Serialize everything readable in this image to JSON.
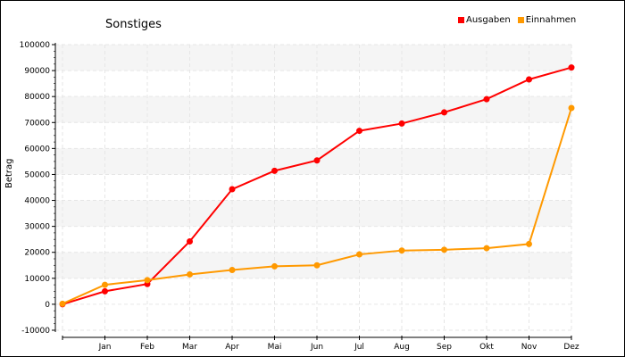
{
  "chart_data": {
    "type": "line",
    "title": "Sonstiges",
    "xlabel": "",
    "ylabel": "Betrag",
    "categories": [
      "",
      "Jan",
      "Feb",
      "Mar",
      "Apr",
      "Mai",
      "Jun",
      "Jul",
      "Aug",
      "Sep",
      "Okt",
      "Nov",
      "Dez"
    ],
    "y_ticks": [
      "-10000",
      "0",
      "10000",
      "20000",
      "30000",
      "40000",
      "50000",
      "60000",
      "70000",
      "80000",
      "90000",
      "100000"
    ],
    "ylim": [
      -10000,
      100000
    ],
    "grid": true,
    "legend_position": "top-right",
    "series": [
      {
        "name": "Ausgaben",
        "color": "#ff0000",
        "values": [
          0,
          5000,
          7800,
          24200,
          44300,
          51400,
          55400,
          66800,
          69600,
          73900,
          79000,
          86600,
          91200
        ]
      },
      {
        "name": "Einnahmen",
        "color": "#ff9900",
        "values": [
          200,
          7500,
          9300,
          11500,
          13200,
          14600,
          15000,
          19200,
          20700,
          21000,
          21600,
          23200,
          75600
        ]
      }
    ]
  }
}
